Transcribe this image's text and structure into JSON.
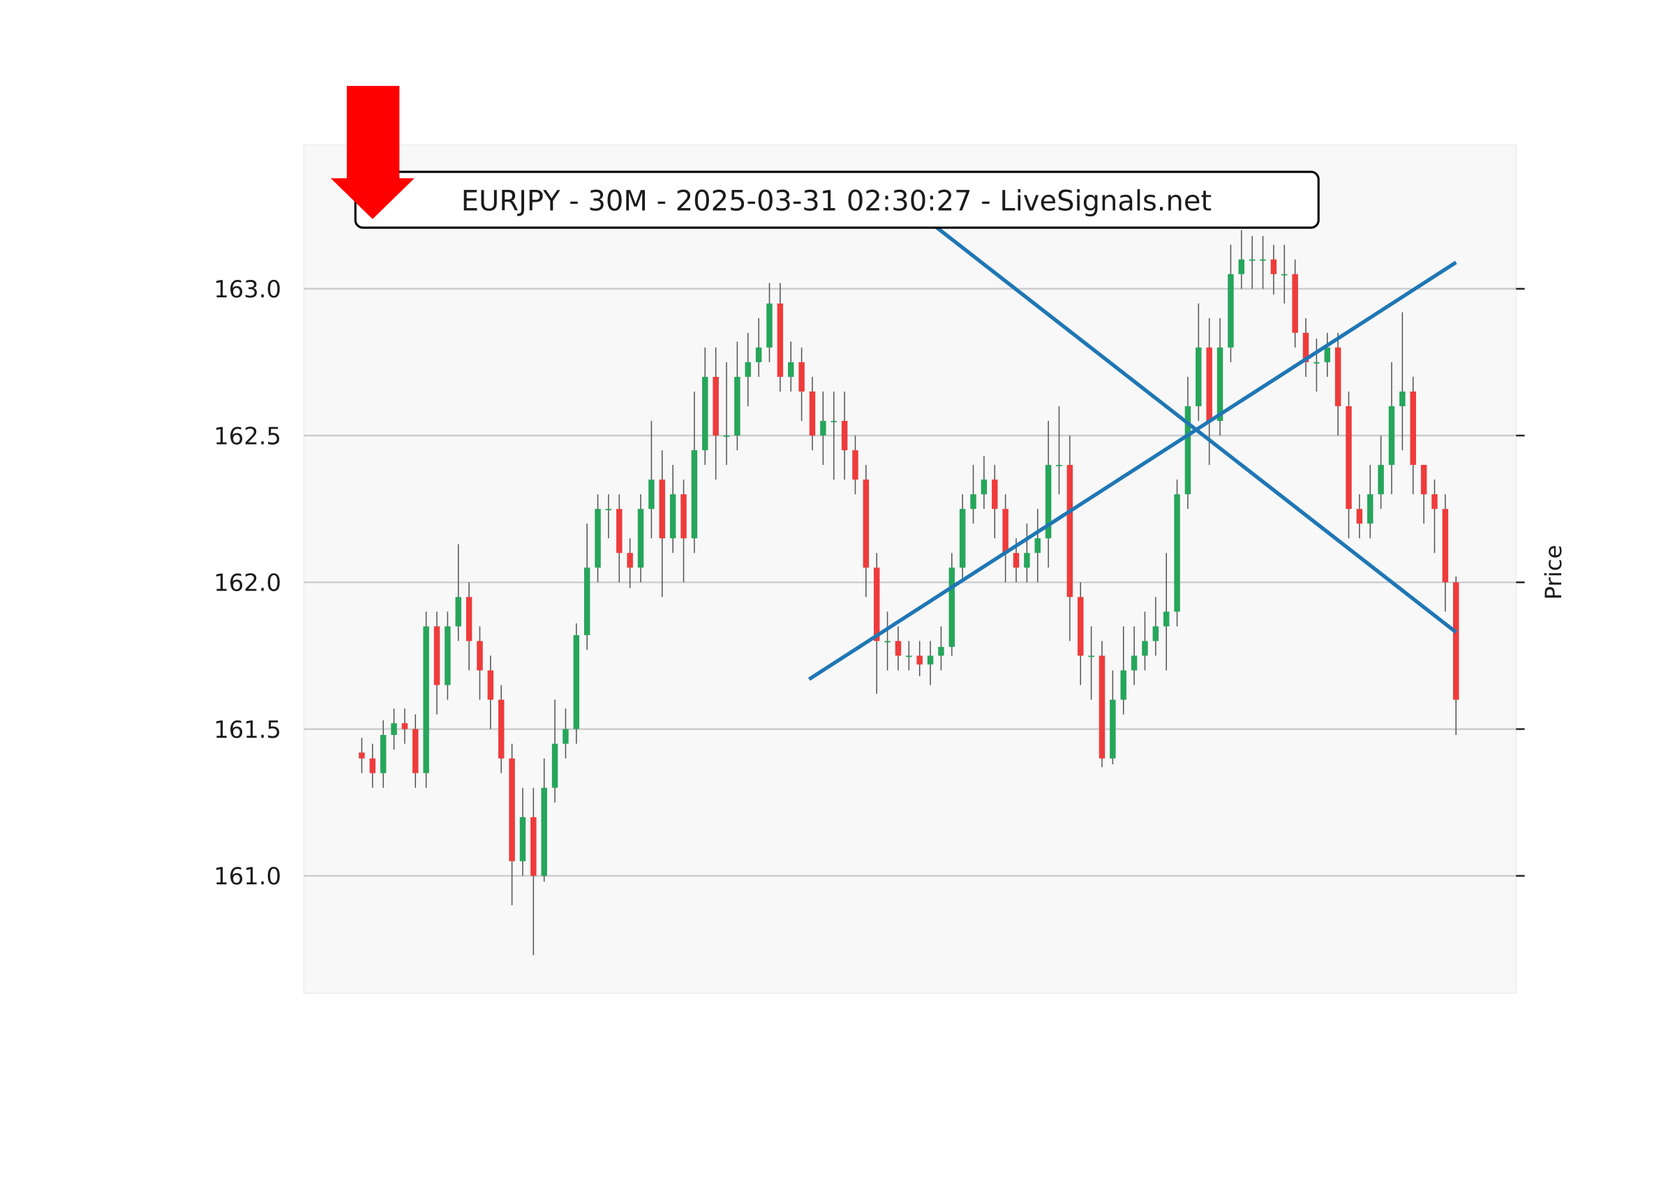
{
  "chart_data": {
    "type": "candlestick",
    "title": "EURJPY - 30M - 2025-03-31 02:30:27 - LiveSignals.net",
    "y_label": "Price",
    "up_color": "#26a65b",
    "down_color": "#ef3b3b",
    "wick_color": "#555555",
    "grid": true,
    "xlim": [
      -5.4,
      107.6
    ],
    "ylim": [
      160.6,
      163.49
    ],
    "yticks": [
      {
        "value": 161,
        "label": "161.0"
      },
      {
        "value": 161.5,
        "label": "161.5"
      },
      {
        "value": 162,
        "label": "162.0"
      },
      {
        "value": 162.5,
        "label": "162.5"
      },
      {
        "value": 163,
        "label": "163.0"
      }
    ],
    "open": [
      161.42,
      161.4,
      161.35,
      161.48,
      161.52,
      161.5,
      161.35,
      161.85,
      161.65,
      161.85,
      161.95,
      161.8,
      161.7,
      161.6,
      161.4,
      161.05,
      161.2,
      161.0,
      161.3,
      161.45,
      161.5,
      161.82,
      162.05,
      162.25,
      162.25,
      162.1,
      162.05,
      162.25,
      162.35,
      162.15,
      162.3,
      162.15,
      162.45,
      162.7,
      162.5,
      162.5,
      162.7,
      162.75,
      162.8,
      162.95,
      162.7,
      162.75,
      162.65,
      162.5,
      162.55,
      162.55,
      162.45,
      162.35,
      162.05,
      161.8,
      161.8,
      161.75,
      161.75,
      161.72,
      161.75,
      161.78,
      162.05,
      162.25,
      162.3,
      162.35,
      162.25,
      162.1,
      162.05,
      162.1,
      162.15,
      162.4,
      162.4,
      161.95,
      161.75,
      161.75,
      161.4,
      161.6,
      161.7,
      161.75,
      161.8,
      161.85,
      161.9,
      162.3,
      162.6,
      162.8,
      162.55,
      162.8,
      163.05,
      163.1,
      163.1,
      163.1,
      163.05,
      163.05,
      162.85,
      162.75,
      162.75,
      162.8,
      162.6,
      162.25,
      162.2,
      162.3,
      162.4,
      162.6,
      162.65,
      162.4,
      162.3,
      162.25,
      162.0
    ],
    "high": [
      161.47,
      161.45,
      161.53,
      161.57,
      161.57,
      161.55,
      161.9,
      161.9,
      161.9,
      162.13,
      162.0,
      161.85,
      161.75,
      161.65,
      161.45,
      161.3,
      161.3,
      161.4,
      161.6,
      161.57,
      161.86,
      162.2,
      162.3,
      162.3,
      162.3,
      162.15,
      162.3,
      162.55,
      162.45,
      162.4,
      162.35,
      162.65,
      162.8,
      162.8,
      162.75,
      162.82,
      162.85,
      162.9,
      163.02,
      163.02,
      162.82,
      162.8,
      162.7,
      162.65,
      162.65,
      162.65,
      162.5,
      162.4,
      162.1,
      161.9,
      161.85,
      161.8,
      161.8,
      161.8,
      161.85,
      162.1,
      162.3,
      162.4,
      162.43,
      162.4,
      162.3,
      162.15,
      162.2,
      162.25,
      162.55,
      162.6,
      162.5,
      162.0,
      161.85,
      161.8,
      161.7,
      161.85,
      161.85,
      161.9,
      161.95,
      162.1,
      162.35,
      162.7,
      162.95,
      162.9,
      162.9,
      163.15,
      163.2,
      163.18,
      163.18,
      163.15,
      163.15,
      163.1,
      162.9,
      162.83,
      162.85,
      162.85,
      162.65,
      162.3,
      162.4,
      162.5,
      162.75,
      162.92,
      162.7,
      162.4,
      162.35,
      162.3,
      162.02
    ],
    "low": [
      161.35,
      161.3,
      161.3,
      161.43,
      161.45,
      161.3,
      161.3,
      161.55,
      161.6,
      161.8,
      161.7,
      161.6,
      161.5,
      161.35,
      160.9,
      161.0,
      160.73,
      160.98,
      161.25,
      161.4,
      161.45,
      161.77,
      162.0,
      162.15,
      162.0,
      161.98,
      162.0,
      162.15,
      161.95,
      162.1,
      162.0,
      162.1,
      162.4,
      162.35,
      162.4,
      162.45,
      162.6,
      162.7,
      162.75,
      162.65,
      162.65,
      162.55,
      162.45,
      162.4,
      162.35,
      162.35,
      162.3,
      161.95,
      161.62,
      161.7,
      161.7,
      161.7,
      161.68,
      161.65,
      161.7,
      161.75,
      162.0,
      162.2,
      162.25,
      162.15,
      162.0,
      162.0,
      162.0,
      162.0,
      162.05,
      162.3,
      161.8,
      161.65,
      161.6,
      161.37,
      161.38,
      161.55,
      161.65,
      161.7,
      161.75,
      161.7,
      161.85,
      162.25,
      162.55,
      162.4,
      162.5,
      162.75,
      163.0,
      163.0,
      163.0,
      162.98,
      162.95,
      162.8,
      162.7,
      162.65,
      162.7,
      162.5,
      162.15,
      162.15,
      162.15,
      162.25,
      162.3,
      162.45,
      162.3,
      162.2,
      162.1,
      161.9,
      161.48
    ],
    "close": [
      161.4,
      161.35,
      161.48,
      161.52,
      161.5,
      161.35,
      161.85,
      161.65,
      161.85,
      161.95,
      161.8,
      161.7,
      161.6,
      161.4,
      161.05,
      161.2,
      161.0,
      161.3,
      161.45,
      161.5,
      161.82,
      162.05,
      162.25,
      162.25,
      162.1,
      162.05,
      162.25,
      162.35,
      162.15,
      162.3,
      162.15,
      162.45,
      162.7,
      162.5,
      162.5,
      162.7,
      162.75,
      162.8,
      162.95,
      162.7,
      162.75,
      162.65,
      162.5,
      162.55,
      162.55,
      162.45,
      162.35,
      162.05,
      161.8,
      161.8,
      161.75,
      161.75,
      161.72,
      161.75,
      161.78,
      162.05,
      162.25,
      162.3,
      162.35,
      162.25,
      162.1,
      162.05,
      162.1,
      162.15,
      162.4,
      162.4,
      161.95,
      161.75,
      161.75,
      161.4,
      161.6,
      161.7,
      161.75,
      161.8,
      161.85,
      161.9,
      162.3,
      162.6,
      162.8,
      162.55,
      162.8,
      163.05,
      163.1,
      163.1,
      163.1,
      163.05,
      163.05,
      162.85,
      162.75,
      162.75,
      162.8,
      162.6,
      162.25,
      162.2,
      162.3,
      162.4,
      162.6,
      162.65,
      162.4,
      162.3,
      162.25,
      162.0,
      161.6
    ],
    "lines": [
      {
        "color": "#1f77b4",
        "x": [
          41.7,
          102
        ],
        "y": [
          161.67,
          163.09
        ]
      },
      {
        "color": "#1f77b4",
        "x": [
          53.2,
          102
        ],
        "y": [
          163.22,
          161.83
        ]
      }
    ]
  }
}
